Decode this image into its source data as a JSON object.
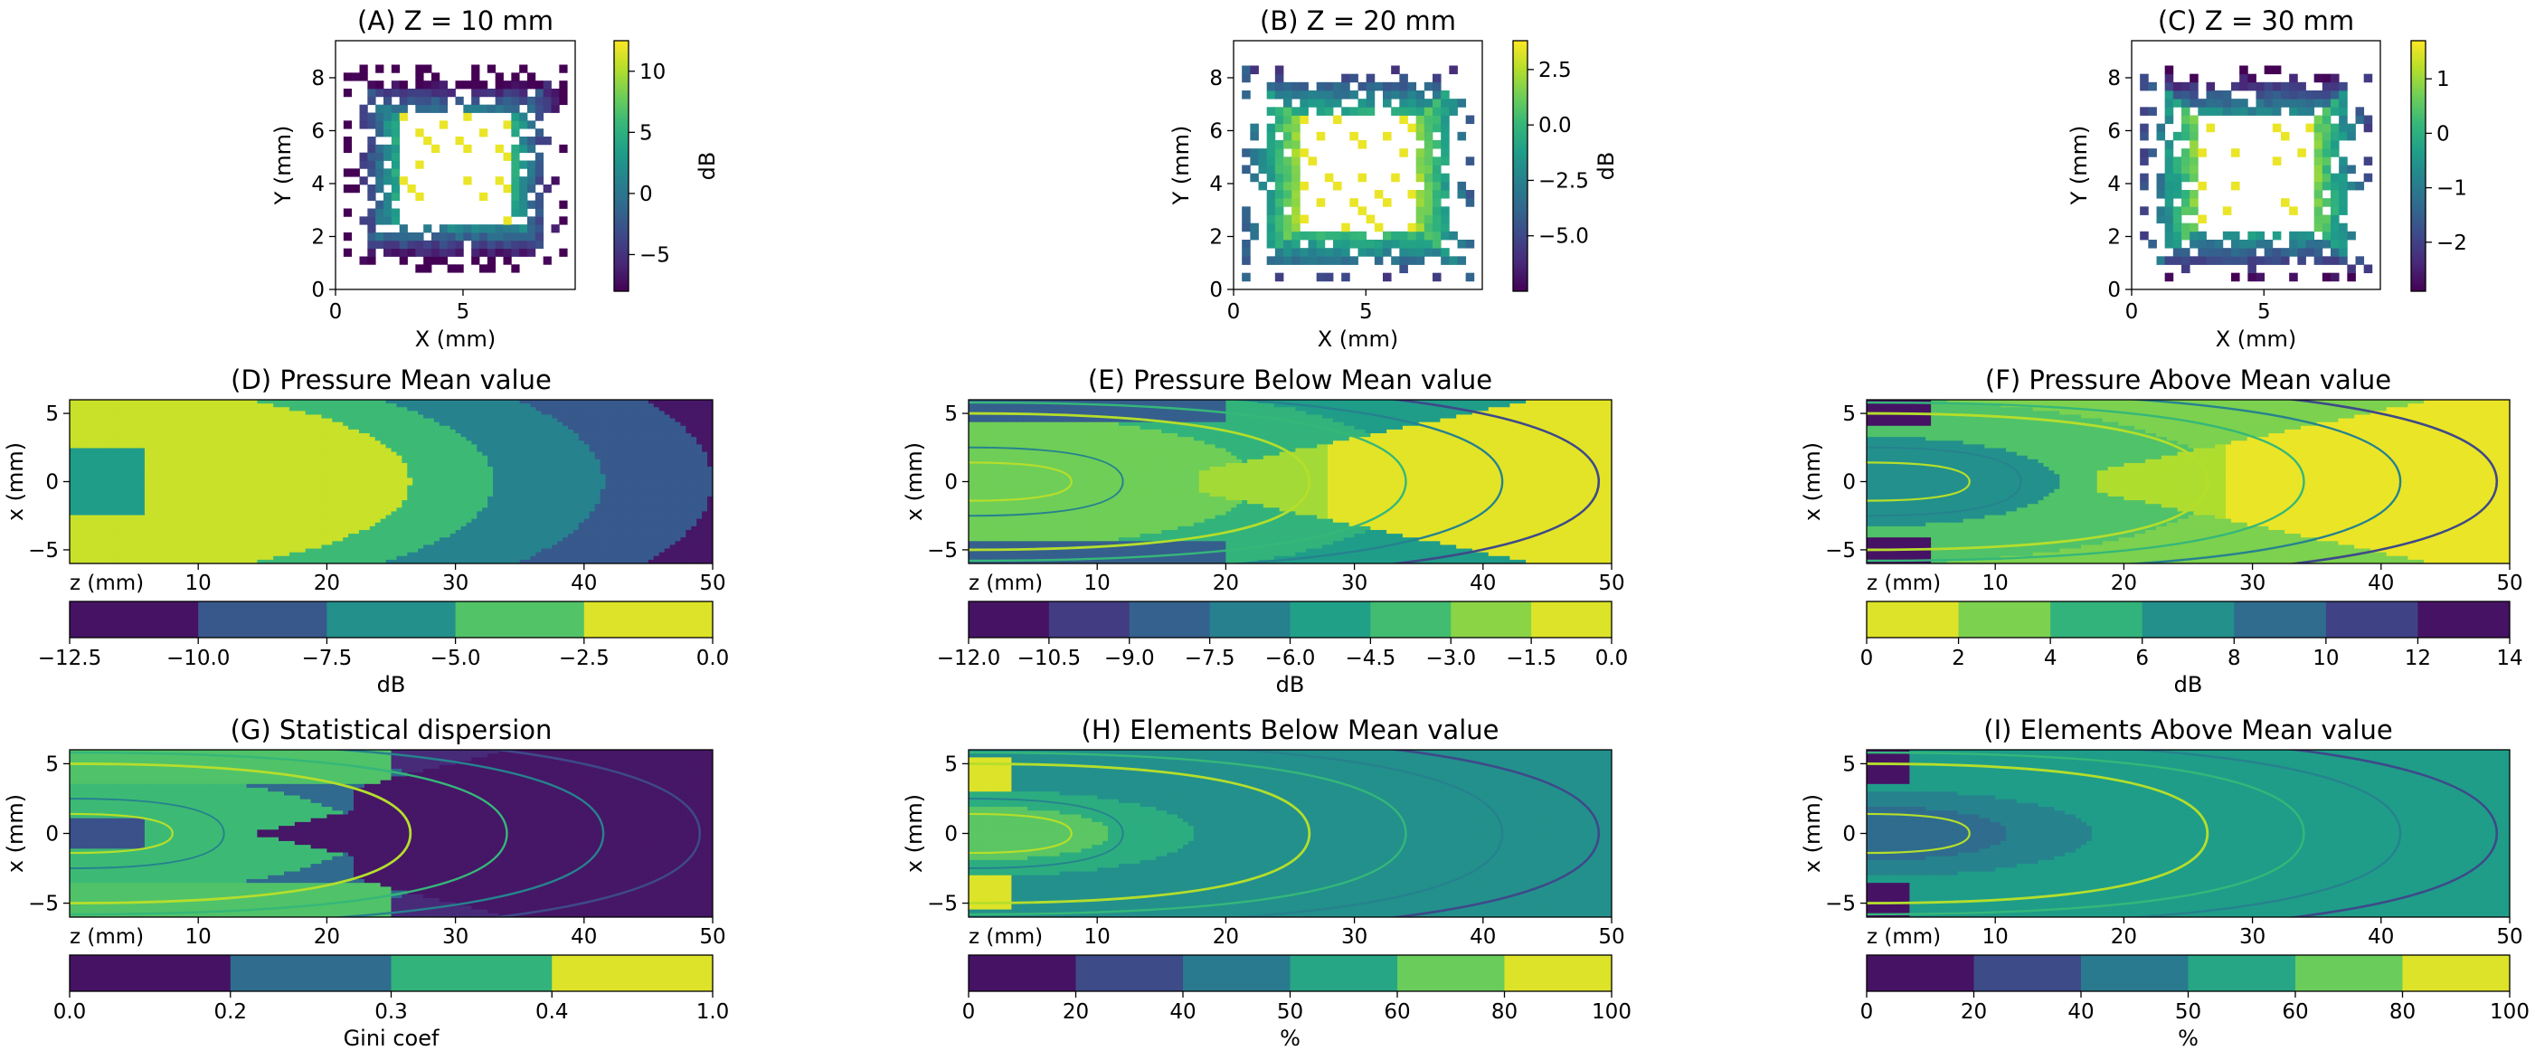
{
  "colors": {
    "viridis": [
      "#440154",
      "#482878",
      "#3e4989",
      "#31688e",
      "#26828e",
      "#1f9e89",
      "#35b779",
      "#6ece58",
      "#b5de2b",
      "#fde725"
    ]
  },
  "chart_data": [
    {
      "id": "A",
      "type": "heatmap",
      "title": "(A) Z = 10 mm",
      "xlabel": "X (mm)",
      "ylabel": "Y (mm)",
      "xlim": [
        0,
        9.4
      ],
      "ylim": [
        0,
        9.4
      ],
      "xticks": [
        "0",
        "5"
      ],
      "yticks": [
        "0",
        "2",
        "4",
        "6",
        "8"
      ],
      "colorbar": {
        "label": "dB",
        "range": [
          -8,
          12.5
        ],
        "ticks": [
          "10",
          "5",
          "0",
          "−5"
        ],
        "tick_values": [
          10,
          5,
          0,
          -5
        ]
      },
      "description": "Square ring of array elements; inner core elements high dB, outer ring low"
    },
    {
      "id": "B",
      "type": "heatmap",
      "title": "(B) Z = 20 mm",
      "xlabel": "X (mm)",
      "ylabel": "Y (mm)",
      "xlim": [
        0,
        9.4
      ],
      "ylim": [
        0,
        9.4
      ],
      "xticks": [
        "0",
        "5"
      ],
      "yticks": [
        "0",
        "2",
        "4",
        "6",
        "8"
      ],
      "colorbar": {
        "label": "dB",
        "range": [
          -7.5,
          3.8
        ],
        "ticks": [
          "2.5",
          "0.0",
          "−2.5",
          "−5.0"
        ],
        "tick_values": [
          2.5,
          0,
          -2.5,
          -5
        ]
      }
    },
    {
      "id": "C",
      "type": "heatmap",
      "title": "(C) Z = 30 mm",
      "xlabel": "X (mm)",
      "ylabel": "Y (mm)",
      "xlim": [
        0,
        9.4
      ],
      "ylim": [
        0,
        9.4
      ],
      "xticks": [
        "0",
        "5"
      ],
      "yticks": [
        "0",
        "2",
        "4",
        "6",
        "8"
      ],
      "colorbar": {
        "label": "",
        "range": [
          -2.9,
          1.7
        ],
        "ticks": [
          "1",
          "0",
          "−1",
          "−2"
        ],
        "tick_values": [
          1,
          0,
          -1,
          -2
        ]
      }
    },
    {
      "id": "D",
      "type": "heatmap",
      "title": "(D) Pressure Mean value",
      "xlabel": "z (mm)",
      "ylabel": "x (mm)",
      "xlim": [
        0,
        50
      ],
      "ylim": [
        -6,
        6
      ],
      "xticks": [
        "10",
        "20",
        "30",
        "40",
        "50"
      ],
      "yticks": [
        "5",
        "0",
        "−5"
      ],
      "colorbar": {
        "label": "dB",
        "bounds": [
          -12.5,
          -10,
          -7.5,
          -5,
          -2.5,
          0
        ],
        "ticks": [
          "−12.5",
          "−10.0",
          "−7.5",
          "−5.0",
          "−2.5",
          "0.0"
        ]
      }
    },
    {
      "id": "E",
      "type": "heatmap",
      "title": "(E) Pressure Below Mean value",
      "xlabel": "z (mm)",
      "ylabel": "x (mm)",
      "xlim": [
        0,
        50
      ],
      "ylim": [
        -6,
        6
      ],
      "xticks": [
        "10",
        "20",
        "30",
        "40",
        "50"
      ],
      "yticks": [
        "5",
        "0",
        "−5"
      ],
      "colorbar": {
        "label": "dB",
        "bounds": [
          -12,
          -10.5,
          -9,
          -7.5,
          -6,
          -4.5,
          -3,
          -1.5,
          0
        ],
        "ticks": [
          "−12.0",
          "−10.5",
          "−9.0",
          "−7.5",
          "−6.0",
          "−4.5",
          "−3.0",
          "−1.5",
          "0.0"
        ]
      }
    },
    {
      "id": "F",
      "type": "heatmap",
      "title": "(F) Pressure Above Mean value",
      "xlabel": "z (mm)",
      "ylabel": "x (mm)",
      "xlim": [
        0,
        50
      ],
      "ylim": [
        -6,
        6
      ],
      "xticks": [
        "10",
        "20",
        "30",
        "40",
        "50"
      ],
      "yticks": [
        "5",
        "0",
        "−5"
      ],
      "colorbar": {
        "label": "dB",
        "bounds": [
          0,
          2,
          4,
          6,
          8,
          10,
          12,
          14
        ],
        "ticks": [
          "0",
          "2",
          "4",
          "6",
          "8",
          "10",
          "12",
          "14"
        ],
        "reversed": true
      }
    },
    {
      "id": "G",
      "type": "heatmap",
      "title": "(G) Statistical dispersion",
      "xlabel": "z (mm)",
      "ylabel": "x (mm)",
      "xlim": [
        0,
        50
      ],
      "ylim": [
        -6,
        6
      ],
      "xticks": [
        "10",
        "20",
        "30",
        "40",
        "50"
      ],
      "yticks": [
        "5",
        "0",
        "−5"
      ],
      "colorbar": {
        "label": "Gini coef",
        "bounds": [
          0,
          0.2,
          0.3,
          0.4,
          1.0
        ],
        "ticks": [
          "0.0",
          "0.2",
          "0.3",
          "0.4",
          "1.0"
        ]
      }
    },
    {
      "id": "H",
      "type": "heatmap",
      "title": "(H) Elements Below Mean value",
      "xlabel": "z (mm)",
      "ylabel": "x (mm)",
      "xlim": [
        0,
        50
      ],
      "ylim": [
        -6,
        6
      ],
      "xticks": [
        "10",
        "20",
        "30",
        "40",
        "50"
      ],
      "yticks": [
        "5",
        "0",
        "−5"
      ],
      "colorbar": {
        "label": "%",
        "bounds": [
          0,
          20,
          40,
          50,
          60,
          80,
          100
        ],
        "ticks": [
          "0",
          "20",
          "40",
          "50",
          "60",
          "80",
          "100"
        ]
      }
    },
    {
      "id": "I",
      "type": "heatmap",
      "title": "(I) Elements Above Mean value",
      "xlabel": "z (mm)",
      "ylabel": "x (mm)",
      "xlim": [
        0,
        50
      ],
      "ylim": [
        -6,
        6
      ],
      "xticks": [
        "10",
        "20",
        "30",
        "40",
        "50"
      ],
      "yticks": [
        "5",
        "0",
        "−5"
      ],
      "colorbar": {
        "label": "%",
        "bounds": [
          0,
          20,
          40,
          50,
          60,
          80,
          100
        ],
        "ticks": [
          "0",
          "20",
          "40",
          "50",
          "60",
          "80",
          "100"
        ]
      }
    }
  ]
}
